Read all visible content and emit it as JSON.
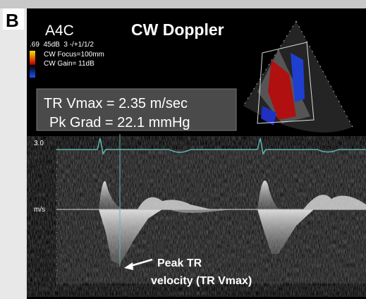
{
  "panel_label": "B",
  "header": {
    "view": "A4C",
    "mode": "CW Doppler"
  },
  "settings": [
    ".69  45dB  3 -/+1/1/2",
    "CW Focus=100mm",
    "CW Gain= 11dB"
  ],
  "measurements": [
    "TR Vmax = 2.35 m/sec",
    "Pk Grad = 22.1 mmHg"
  ],
  "scale": {
    "top": "3.0",
    "unit": "m/s"
  },
  "annotation": [
    "Peak TR",
    "velocity (TR Vmax)"
  ]
}
